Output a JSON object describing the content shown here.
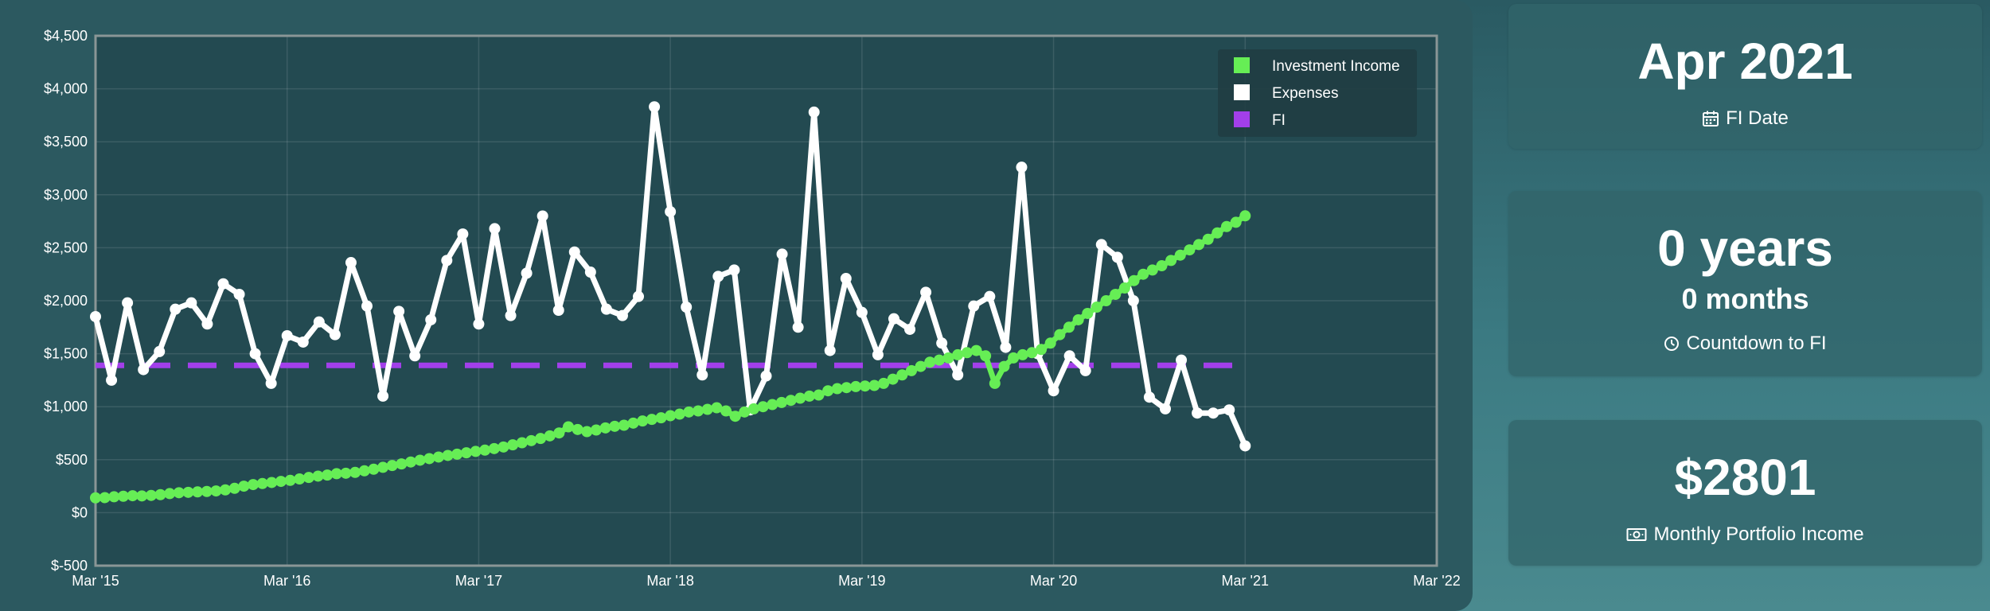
{
  "chart_data": {
    "type": "line",
    "title": "",
    "xlabel": "",
    "ylabel": "",
    "ylim": [
      -500,
      4500
    ],
    "yticks": [
      -500,
      0,
      500,
      1000,
      1500,
      2000,
      2500,
      3000,
      3500,
      4000,
      4500
    ],
    "ytick_labels": [
      "$-500",
      "$0",
      "$500",
      "$1,000",
      "$1,500",
      "$2,000",
      "$2,500",
      "$3,000",
      "$3,500",
      "$4,000",
      "$4,500"
    ],
    "xlim": [
      "2015-03",
      "2022-03"
    ],
    "xticks": [
      "2015-03",
      "2016-03",
      "2017-03",
      "2018-03",
      "2019-03",
      "2020-03",
      "2021-03",
      "2022-03"
    ],
    "xtick_labels": [
      "Mar '15",
      "Mar '16",
      "Mar '17",
      "Mar '18",
      "Mar '19",
      "Mar '20",
      "Mar '21",
      "Mar '22"
    ],
    "grid": true,
    "legend_position": "top-right",
    "colors": {
      "investment": "#66ee55",
      "expenses": "#ffffff",
      "fi": "#a23fea"
    },
    "series": [
      {
        "name": "Investment Income",
        "start": "2015-03",
        "end": "2021-03",
        "values": [
          140,
          142,
          150,
          155,
          160,
          158,
          163,
          170,
          180,
          188,
          192,
          196,
          200,
          205,
          215,
          230,
          250,
          265,
          275,
          285,
          295,
          305,
          318,
          332,
          345,
          355,
          368,
          372,
          380,
          395,
          410,
          428,
          445,
          460,
          478,
          495,
          510,
          525,
          540,
          552,
          565,
          578,
          590,
          605,
          620,
          640,
          660,
          680,
          700,
          725,
          752,
          810,
          785,
          765,
          780,
          800,
          815,
          825,
          845,
          865,
          880,
          895,
          915,
          930,
          950,
          960,
          975,
          990,
          960,
          910,
          950,
          980,
          1000,
          1020,
          1040,
          1060,
          1080,
          1100,
          1110,
          1150,
          1170,
          1180,
          1190,
          1195,
          1200,
          1220,
          1260,
          1300,
          1340,
          1380,
          1420,
          1440,
          1460,
          1490,
          1510,
          1530,
          1480,
          1220,
          1380,
          1460,
          1490,
          1510,
          1540,
          1600,
          1680,
          1750,
          1820,
          1880,
          1940,
          2000,
          2060,
          2120,
          2190,
          2250,
          2290,
          2330,
          2380,
          2430,
          2480,
          2530,
          2580,
          2640,
          2700,
          2740,
          2801
        ]
      },
      {
        "name": "Expenses",
        "start": "2015-03",
        "end": "2021-03",
        "values": [
          1850,
          1250,
          1980,
          1350,
          1520,
          1920,
          1980,
          1780,
          2160,
          2060,
          1500,
          1220,
          1670,
          1610,
          1800,
          1680,
          2360,
          1950,
          1100,
          1900,
          1480,
          1820,
          2380,
          2630,
          1780,
          2680,
          1860,
          2260,
          2800,
          1910,
          2460,
          2270,
          1920,
          1860,
          2040,
          3830,
          2840,
          1940,
          1300,
          2230,
          2290,
          970,
          1290,
          2440,
          1750,
          3780,
          1530,
          2210,
          1890,
          1490,
          1830,
          1730,
          2080,
          1600,
          1300,
          1950,
          2040,
          1560,
          3260,
          1500,
          1150,
          1480,
          1340,
          2530,
          2410,
          2000,
          1090,
          980,
          1440,
          940,
          940,
          970,
          630
        ]
      },
      {
        "name": "FI",
        "start": "2015-03",
        "end": "2021-03",
        "values": [
          1390,
          1390
        ]
      }
    ]
  },
  "cards": {
    "fi_date": {
      "value": "Apr 2021",
      "label": "FI Date",
      "icon": "calendar-icon"
    },
    "countdown": {
      "years": "0 years",
      "months": "0 months",
      "label": "Countdown to FI",
      "icon": "clock-icon"
    },
    "income": {
      "value": "$2801",
      "label": "Monthly Portfolio Income",
      "icon": "money-icon"
    }
  }
}
